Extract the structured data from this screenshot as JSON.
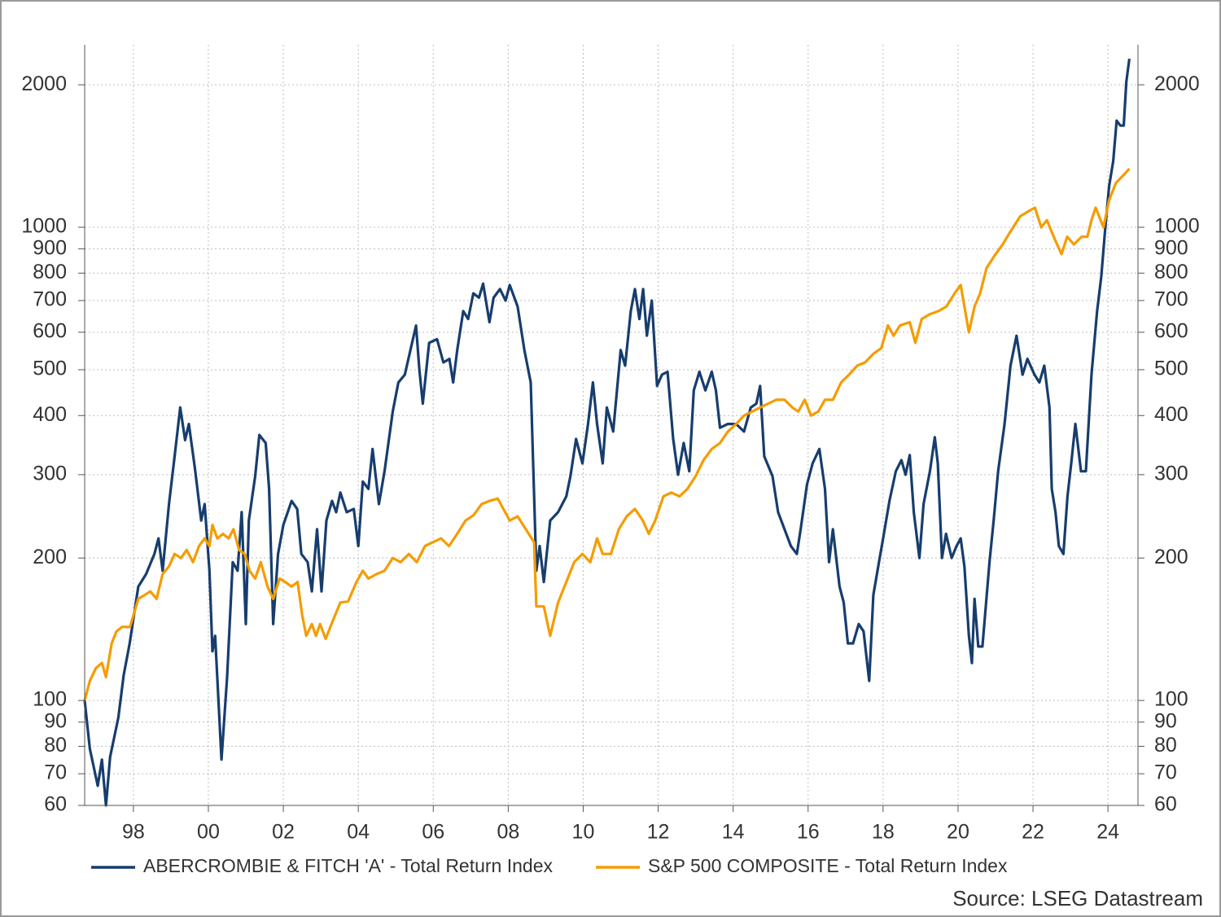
{
  "chart_data": {
    "type": "line",
    "source": "Source: LSEG Datastream",
    "log_scale": true,
    "grid": true,
    "legend": "bottom",
    "xlim": [
      1996.7,
      2024.8
    ],
    "xticks": [
      {
        "value": 1998,
        "label": "98"
      },
      {
        "value": 2000,
        "label": "00"
      },
      {
        "value": 2002,
        "label": "02"
      },
      {
        "value": 2004,
        "label": "04"
      },
      {
        "value": 2006,
        "label": "06"
      },
      {
        "value": 2008,
        "label": "08"
      },
      {
        "value": 2010,
        "label": "10"
      },
      {
        "value": 2012,
        "label": "12"
      },
      {
        "value": 2014,
        "label": "14"
      },
      {
        "value": 2016,
        "label": "16"
      },
      {
        "value": 2018,
        "label": "18"
      },
      {
        "value": 2020,
        "label": "20"
      },
      {
        "value": 2022,
        "label": "22"
      },
      {
        "value": 2024,
        "label": "24"
      }
    ],
    "ylim": [
      60,
      2430
    ],
    "yticks": [
      60,
      70,
      80,
      90,
      100,
      200,
      300,
      400,
      500,
      600,
      700,
      800,
      900,
      1000,
      2000
    ],
    "series": [
      {
        "name": "ABERCROMBIE & FITCH 'A' - Total Return Index",
        "color": "#173d6e",
        "x": [
          1996.7,
          1996.84,
          1997.05,
          1997.16,
          1997.27,
          1997.38,
          1997.6,
          1997.74,
          1997.9,
          1998.13,
          1998.34,
          1998.56,
          1998.67,
          1998.78,
          1998.95,
          1999.1,
          1999.25,
          1999.38,
          1999.48,
          1999.64,
          1999.81,
          1999.9,
          2000.03,
          2000.11,
          2000.18,
          2000.35,
          2000.5,
          2000.65,
          2000.78,
          2000.89,
          2001.0,
          2001.08,
          2001.25,
          2001.36,
          2001.53,
          2001.62,
          2001.73,
          2001.86,
          2002.0,
          2002.22,
          2002.37,
          2002.48,
          2002.65,
          2002.76,
          2002.9,
          2003.02,
          2003.15,
          2003.3,
          2003.41,
          2003.52,
          2003.69,
          2003.88,
          2004.0,
          2004.12,
          2004.27,
          2004.38,
          2004.55,
          2004.7,
          2004.92,
          2005.07,
          2005.24,
          2005.39,
          2005.54,
          2005.63,
          2005.72,
          2005.89,
          2006.1,
          2006.27,
          2006.43,
          2006.53,
          2006.64,
          2006.8,
          2006.93,
          2007.07,
          2007.22,
          2007.33,
          2007.5,
          2007.61,
          2007.78,
          2007.93,
          2008.04,
          2008.25,
          2008.43,
          2008.6,
          2008.75,
          2008.84,
          2008.95,
          2009.12,
          2009.33,
          2009.55,
          2009.66,
          2009.81,
          2009.98,
          2010.13,
          2010.26,
          2010.37,
          2010.52,
          2010.63,
          2010.8,
          2011.0,
          2011.12,
          2011.27,
          2011.38,
          2011.5,
          2011.6,
          2011.7,
          2011.83,
          2011.97,
          2012.1,
          2012.25,
          2012.4,
          2012.53,
          2012.68,
          2012.83,
          2012.95,
          2013.1,
          2013.26,
          2013.43,
          2013.54,
          2013.65,
          2013.86,
          2014.08,
          2014.29,
          2014.47,
          2014.62,
          2014.72,
          2014.83,
          2015.05,
          2015.2,
          2015.37,
          2015.54,
          2015.7,
          2015.8,
          2015.97,
          2016.12,
          2016.3,
          2016.45,
          2016.56,
          2016.66,
          2016.84,
          2016.95,
          2017.06,
          2017.2,
          2017.35,
          2017.48,
          2017.63,
          2017.74,
          2017.89,
          2018.0,
          2018.17,
          2018.34,
          2018.49,
          2018.6,
          2018.71,
          2018.82,
          2018.97,
          2019.08,
          2019.25,
          2019.38,
          2019.46,
          2019.57,
          2019.68,
          2019.83,
          2019.96,
          2020.07,
          2020.17,
          2020.29,
          2020.37,
          2020.44,
          2020.54,
          2020.65,
          2020.84,
          2020.95,
          2021.07,
          2021.24,
          2021.4,
          2021.56,
          2021.72,
          2021.85,
          2022.04,
          2022.17,
          2022.3,
          2022.44,
          2022.5,
          2022.6,
          2022.69,
          2022.81,
          2022.92,
          2023.02,
          2023.13,
          2023.28,
          2023.41,
          2023.56,
          2023.71,
          2023.82,
          2023.93,
          2024.03,
          2024.14,
          2024.23,
          2024.33,
          2024.42,
          2024.49,
          2024.57
        ],
        "values": [
          100,
          79,
          66,
          75,
          60,
          76,
          92,
          113,
          132,
          174,
          185,
          204,
          220,
          188,
          260,
          328,
          416,
          355,
          384,
          310,
          240,
          260,
          188,
          127,
          137,
          75,
          112,
          196,
          188,
          250,
          145,
          240,
          298,
          364,
          350,
          280,
          145,
          204,
          235,
          264,
          254,
          204,
          196,
          170,
          230,
          170,
          240,
          264,
          250,
          275,
          250,
          254,
          212,
          290,
          280,
          340,
          260,
          305,
          408,
          470,
          488,
          550,
          620,
          500,
          424,
          570,
          580,
          518,
          527,
          470,
          550,
          665,
          640,
          725,
          710,
          760,
          630,
          710,
          740,
          700,
          755,
          680,
          550,
          470,
          188,
          212,
          178,
          240,
          250,
          270,
          298,
          357,
          317,
          384,
          470,
          384,
          317,
          416,
          370,
          550,
          510,
          665,
          740,
          640,
          740,
          590,
          700,
          462,
          488,
          495,
          357,
          300,
          350,
          305,
          452,
          495,
          452,
          495,
          452,
          377,
          384,
          384,
          370,
          416,
          424,
          462,
          328,
          298,
          250,
          230,
          212,
          204,
          230,
          286,
          317,
          340,
          280,
          196,
          230,
          174,
          161,
          132,
          132,
          145,
          140,
          110,
          167,
          196,
          220,
          264,
          305,
          322,
          300,
          330,
          250,
          200,
          260,
          305,
          360,
          317,
          200,
          225,
          200,
          212,
          220,
          192,
          137,
          120,
          164,
          130,
          130,
          196,
          240,
          305,
          384,
          510,
          590,
          488,
          527,
          488,
          470,
          510,
          416,
          280,
          250,
          212,
          204,
          270,
          317,
          384,
          305,
          305,
          488,
          665,
          786,
          1000,
          1220,
          1380,
          1680,
          1640,
          1640,
          2030,
          2270
        ]
      },
      {
        "name": "S&P 500 COMPOSITE - Total Return Index",
        "color": "#f59c00",
        "x": [
          1996.7,
          1996.84,
          1997.0,
          1997.16,
          1997.27,
          1997.42,
          1997.55,
          1997.7,
          1997.91,
          1998.13,
          1998.3,
          1998.45,
          1998.62,
          1998.78,
          1998.95,
          1999.1,
          1999.27,
          1999.42,
          1999.59,
          1999.75,
          1999.9,
          2000.03,
          2000.11,
          2000.24,
          2000.39,
          2000.54,
          2000.67,
          2000.82,
          2000.97,
          2001.1,
          2001.25,
          2001.4,
          2001.58,
          2001.73,
          2001.9,
          2002.05,
          2002.22,
          2002.38,
          2002.5,
          2002.61,
          2002.76,
          2002.87,
          2002.98,
          2003.13,
          2003.3,
          2003.52,
          2003.73,
          2003.95,
          2004.12,
          2004.27,
          2004.49,
          2004.7,
          2004.92,
          2005.13,
          2005.35,
          2005.56,
          2005.78,
          2005.99,
          2006.21,
          2006.42,
          2006.64,
          2006.86,
          2007.07,
          2007.29,
          2007.5,
          2007.72,
          2007.87,
          2008.04,
          2008.25,
          2008.47,
          2008.69,
          2008.75,
          2008.95,
          2009.12,
          2009.33,
          2009.55,
          2009.76,
          2009.98,
          2010.19,
          2010.37,
          2010.52,
          2010.74,
          2010.95,
          2011.16,
          2011.38,
          2011.59,
          2011.75,
          2011.92,
          2012.14,
          2012.35,
          2012.57,
          2012.78,
          2013.0,
          2013.21,
          2013.43,
          2013.65,
          2013.86,
          2014.08,
          2014.29,
          2014.51,
          2014.72,
          2014.94,
          2015.15,
          2015.37,
          2015.58,
          2015.74,
          2015.91,
          2016.08,
          2016.27,
          2016.45,
          2016.66,
          2016.88,
          2017.09,
          2017.31,
          2017.52,
          2017.74,
          2017.95,
          2018.13,
          2018.28,
          2018.45,
          2018.71,
          2018.86,
          2019.03,
          2019.25,
          2019.48,
          2019.69,
          2019.91,
          2020.07,
          2020.29,
          2020.44,
          2020.59,
          2020.76,
          2020.97,
          2021.19,
          2021.4,
          2021.66,
          2021.87,
          2022.05,
          2022.22,
          2022.37,
          2022.59,
          2022.76,
          2022.91,
          2023.09,
          2023.3,
          2023.45,
          2023.56,
          2023.67,
          2023.88,
          2024.03,
          2024.21,
          2024.42,
          2024.57
        ],
        "values": [
          100,
          110,
          117,
          120,
          112,
          132,
          140,
          143,
          143,
          164,
          167,
          170,
          164,
          185,
          192,
          204,
          200,
          208,
          196,
          212,
          220,
          212,
          235,
          220,
          225,
          220,
          230,
          208,
          204,
          188,
          181,
          196,
          174,
          164,
          181,
          178,
          174,
          178,
          152,
          137,
          145,
          137,
          145,
          135,
          146,
          161,
          162,
          178,
          188,
          181,
          185,
          188,
          200,
          196,
          204,
          196,
          212,
          216,
          220,
          212,
          225,
          240,
          246,
          260,
          264,
          267,
          254,
          240,
          245,
          230,
          216,
          158,
          158,
          137,
          161,
          178,
          196,
          204,
          196,
          220,
          204,
          204,
          230,
          245,
          254,
          240,
          225,
          240,
          270,
          275,
          270,
          280,
          298,
          322,
          340,
          350,
          370,
          384,
          400,
          408,
          416,
          424,
          432,
          432,
          416,
          408,
          432,
          400,
          408,
          432,
          432,
          470,
          488,
          510,
          518,
          540,
          555,
          620,
          590,
          620,
          630,
          570,
          640,
          655,
          665,
          680,
          725,
          755,
          600,
          680,
          725,
          820,
          870,
          920,
          980,
          1055,
          1080,
          1100,
          1000,
          1035,
          940,
          878,
          955,
          920,
          955,
          955,
          1035,
          1100,
          1000,
          1140,
          1240,
          1290,
          1330
        ]
      }
    ]
  }
}
